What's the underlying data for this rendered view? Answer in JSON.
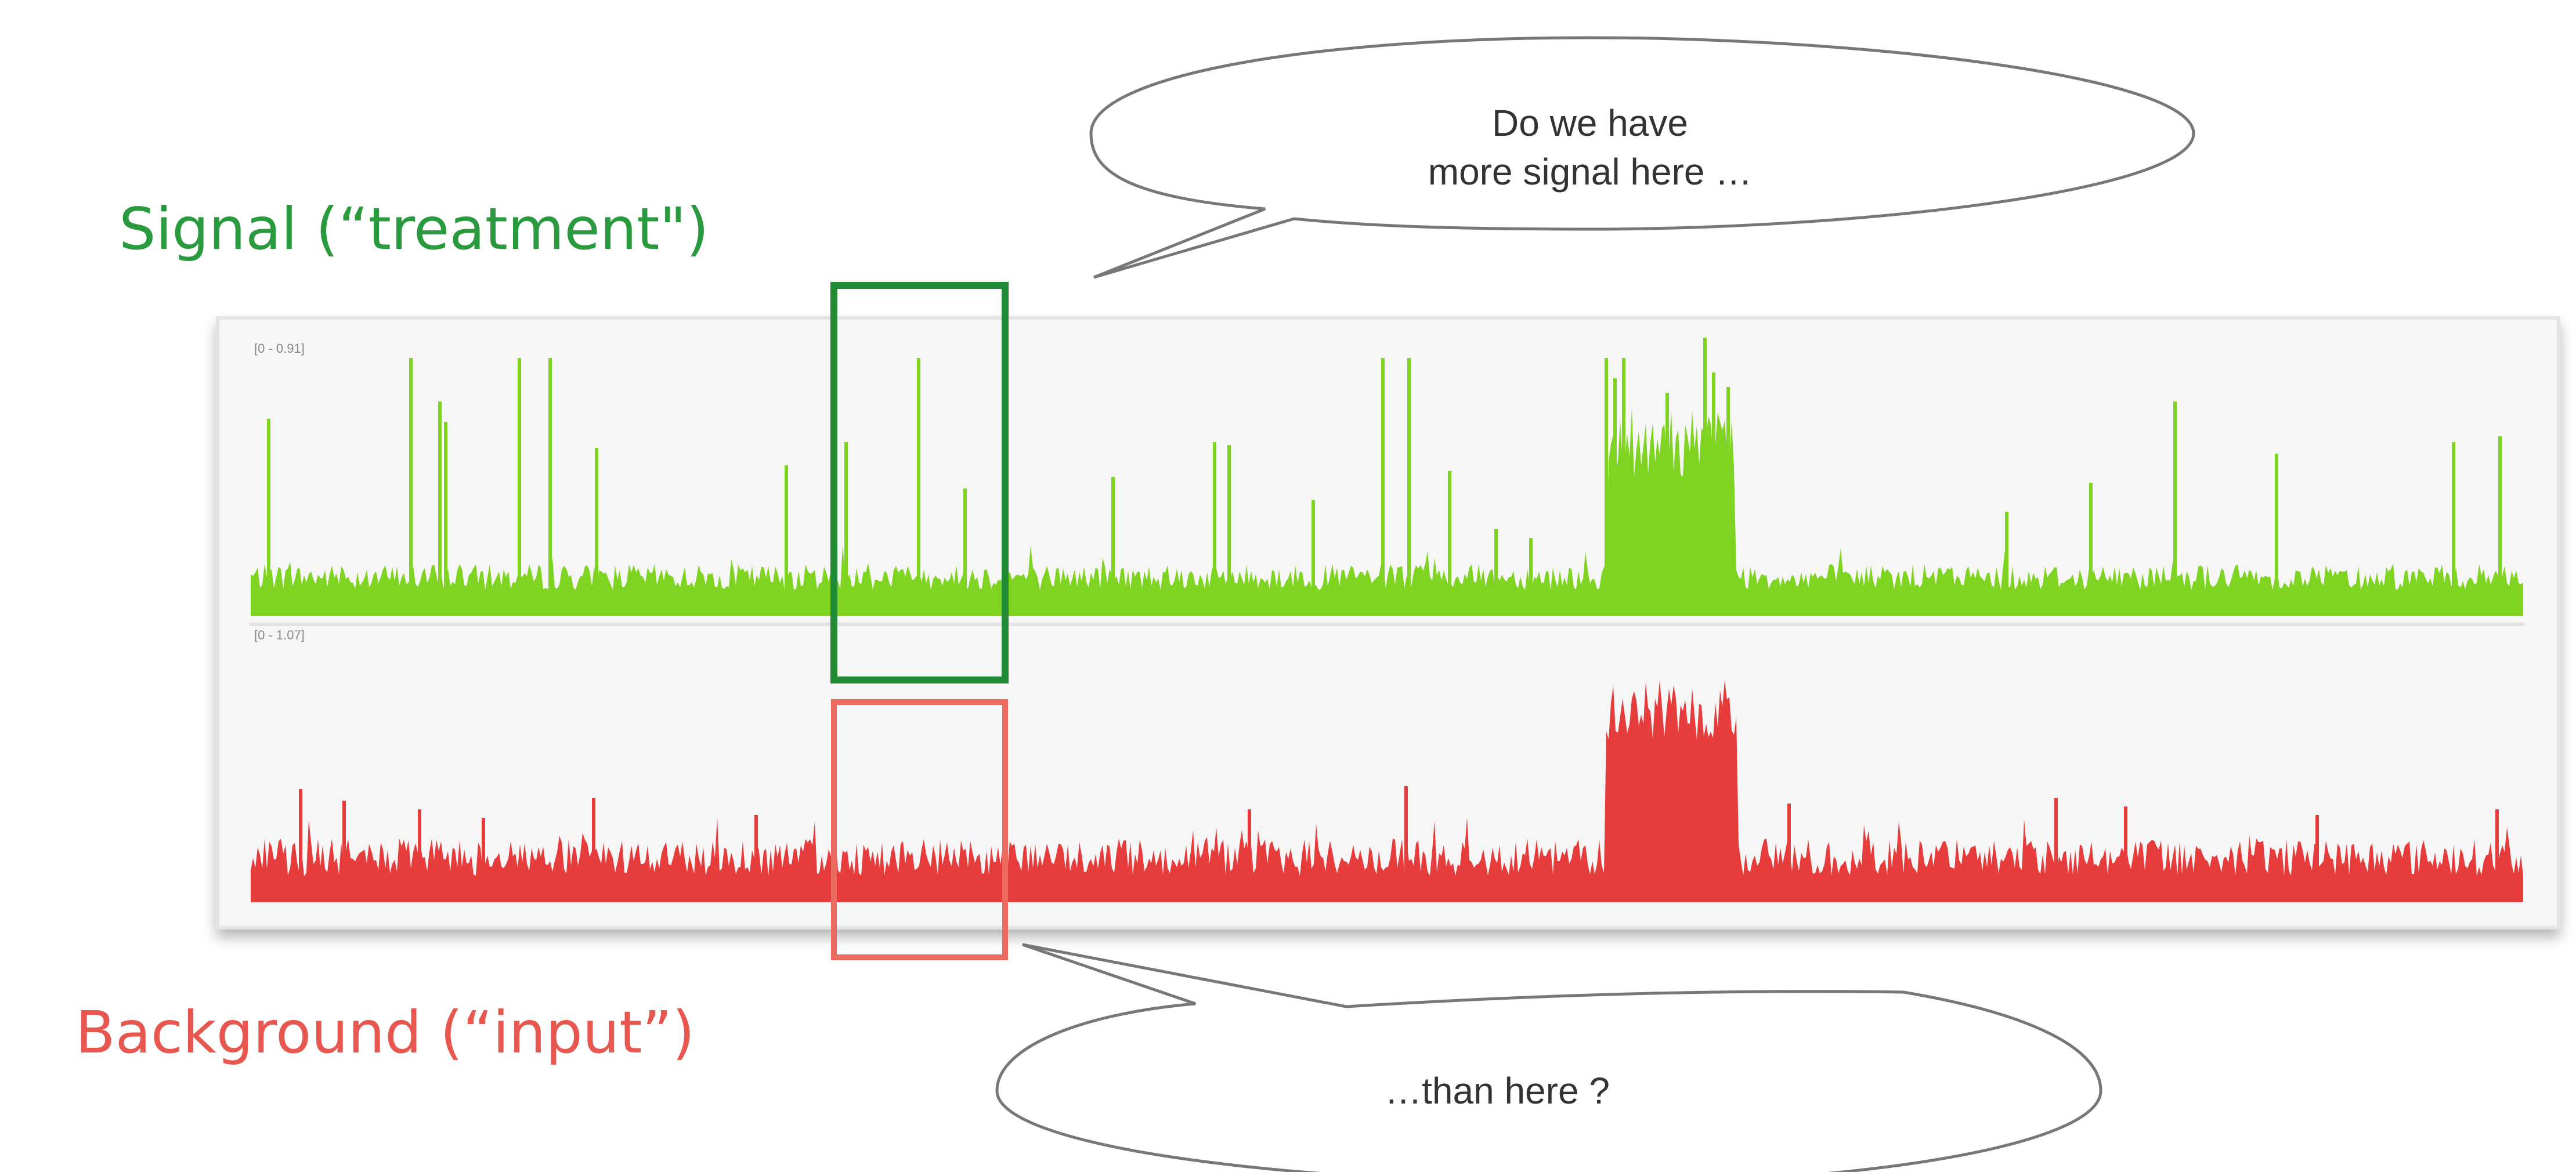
{
  "labels": {
    "signal_title": "Signal (“treatment\")",
    "background_title": "Background (“input”)"
  },
  "callouts": {
    "top_line1": "Do we have",
    "top_line2": "more signal here …",
    "bottom": "…than here ?"
  },
  "tracks": {
    "signal_range": "[0 - 0.91]",
    "background_range": "[0 - 1.07]"
  },
  "colors": {
    "signal": "#7fd321",
    "signal_title": "#2a9a3e",
    "signal_box": "#1f8a33",
    "background": "#e63c3c",
    "background_title": "#e8574f",
    "background_box": "#ea6a60"
  }
}
